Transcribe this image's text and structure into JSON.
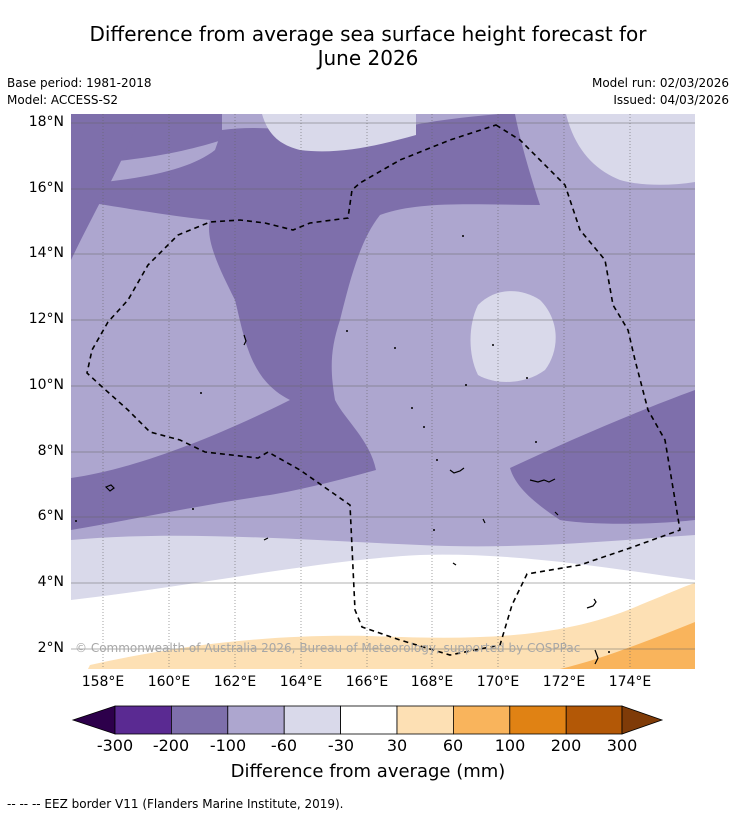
{
  "title_line1": "Difference from average sea surface height forecast for",
  "title_line2": "June 2026",
  "base_period": "Base period: 1981-2018",
  "model": "Model: ACCESS-S2",
  "model_run": "Model run: 02/03/2026",
  "issued": "Issued: 04/03/2026",
  "copyright": "© Commonwealth of Australia 2026, Bureau of Meteorology, supported by COSPPac",
  "lat_labels": [
    "18°N",
    "16°N",
    "14°N",
    "12°N",
    "10°N",
    "8°N",
    "6°N",
    "4°N",
    "2°N"
  ],
  "lon_labels": [
    "158°E",
    "160°E",
    "162°E",
    "164°E",
    "166°E",
    "168°E",
    "170°E",
    "172°E",
    "174°E"
  ],
  "colorbar": {
    "labels": [
      "-300",
      "-200",
      "-100",
      "-60",
      "-30",
      "30",
      "60",
      "100",
      "200",
      "300"
    ],
    "title": "Difference from average (mm)",
    "colors": [
      "#2d004b",
      "#5a2a92",
      "#7e6fab",
      "#ada6cf",
      "#d9d9ea",
      "#ffffff",
      "#fde0b4",
      "#f9b45c",
      "#e08214",
      "#b35806",
      "#7f3b08"
    ]
  },
  "legend_text": "--  --  -- EEZ border V11 (Flanders Marine Institute, 2019)."
}
